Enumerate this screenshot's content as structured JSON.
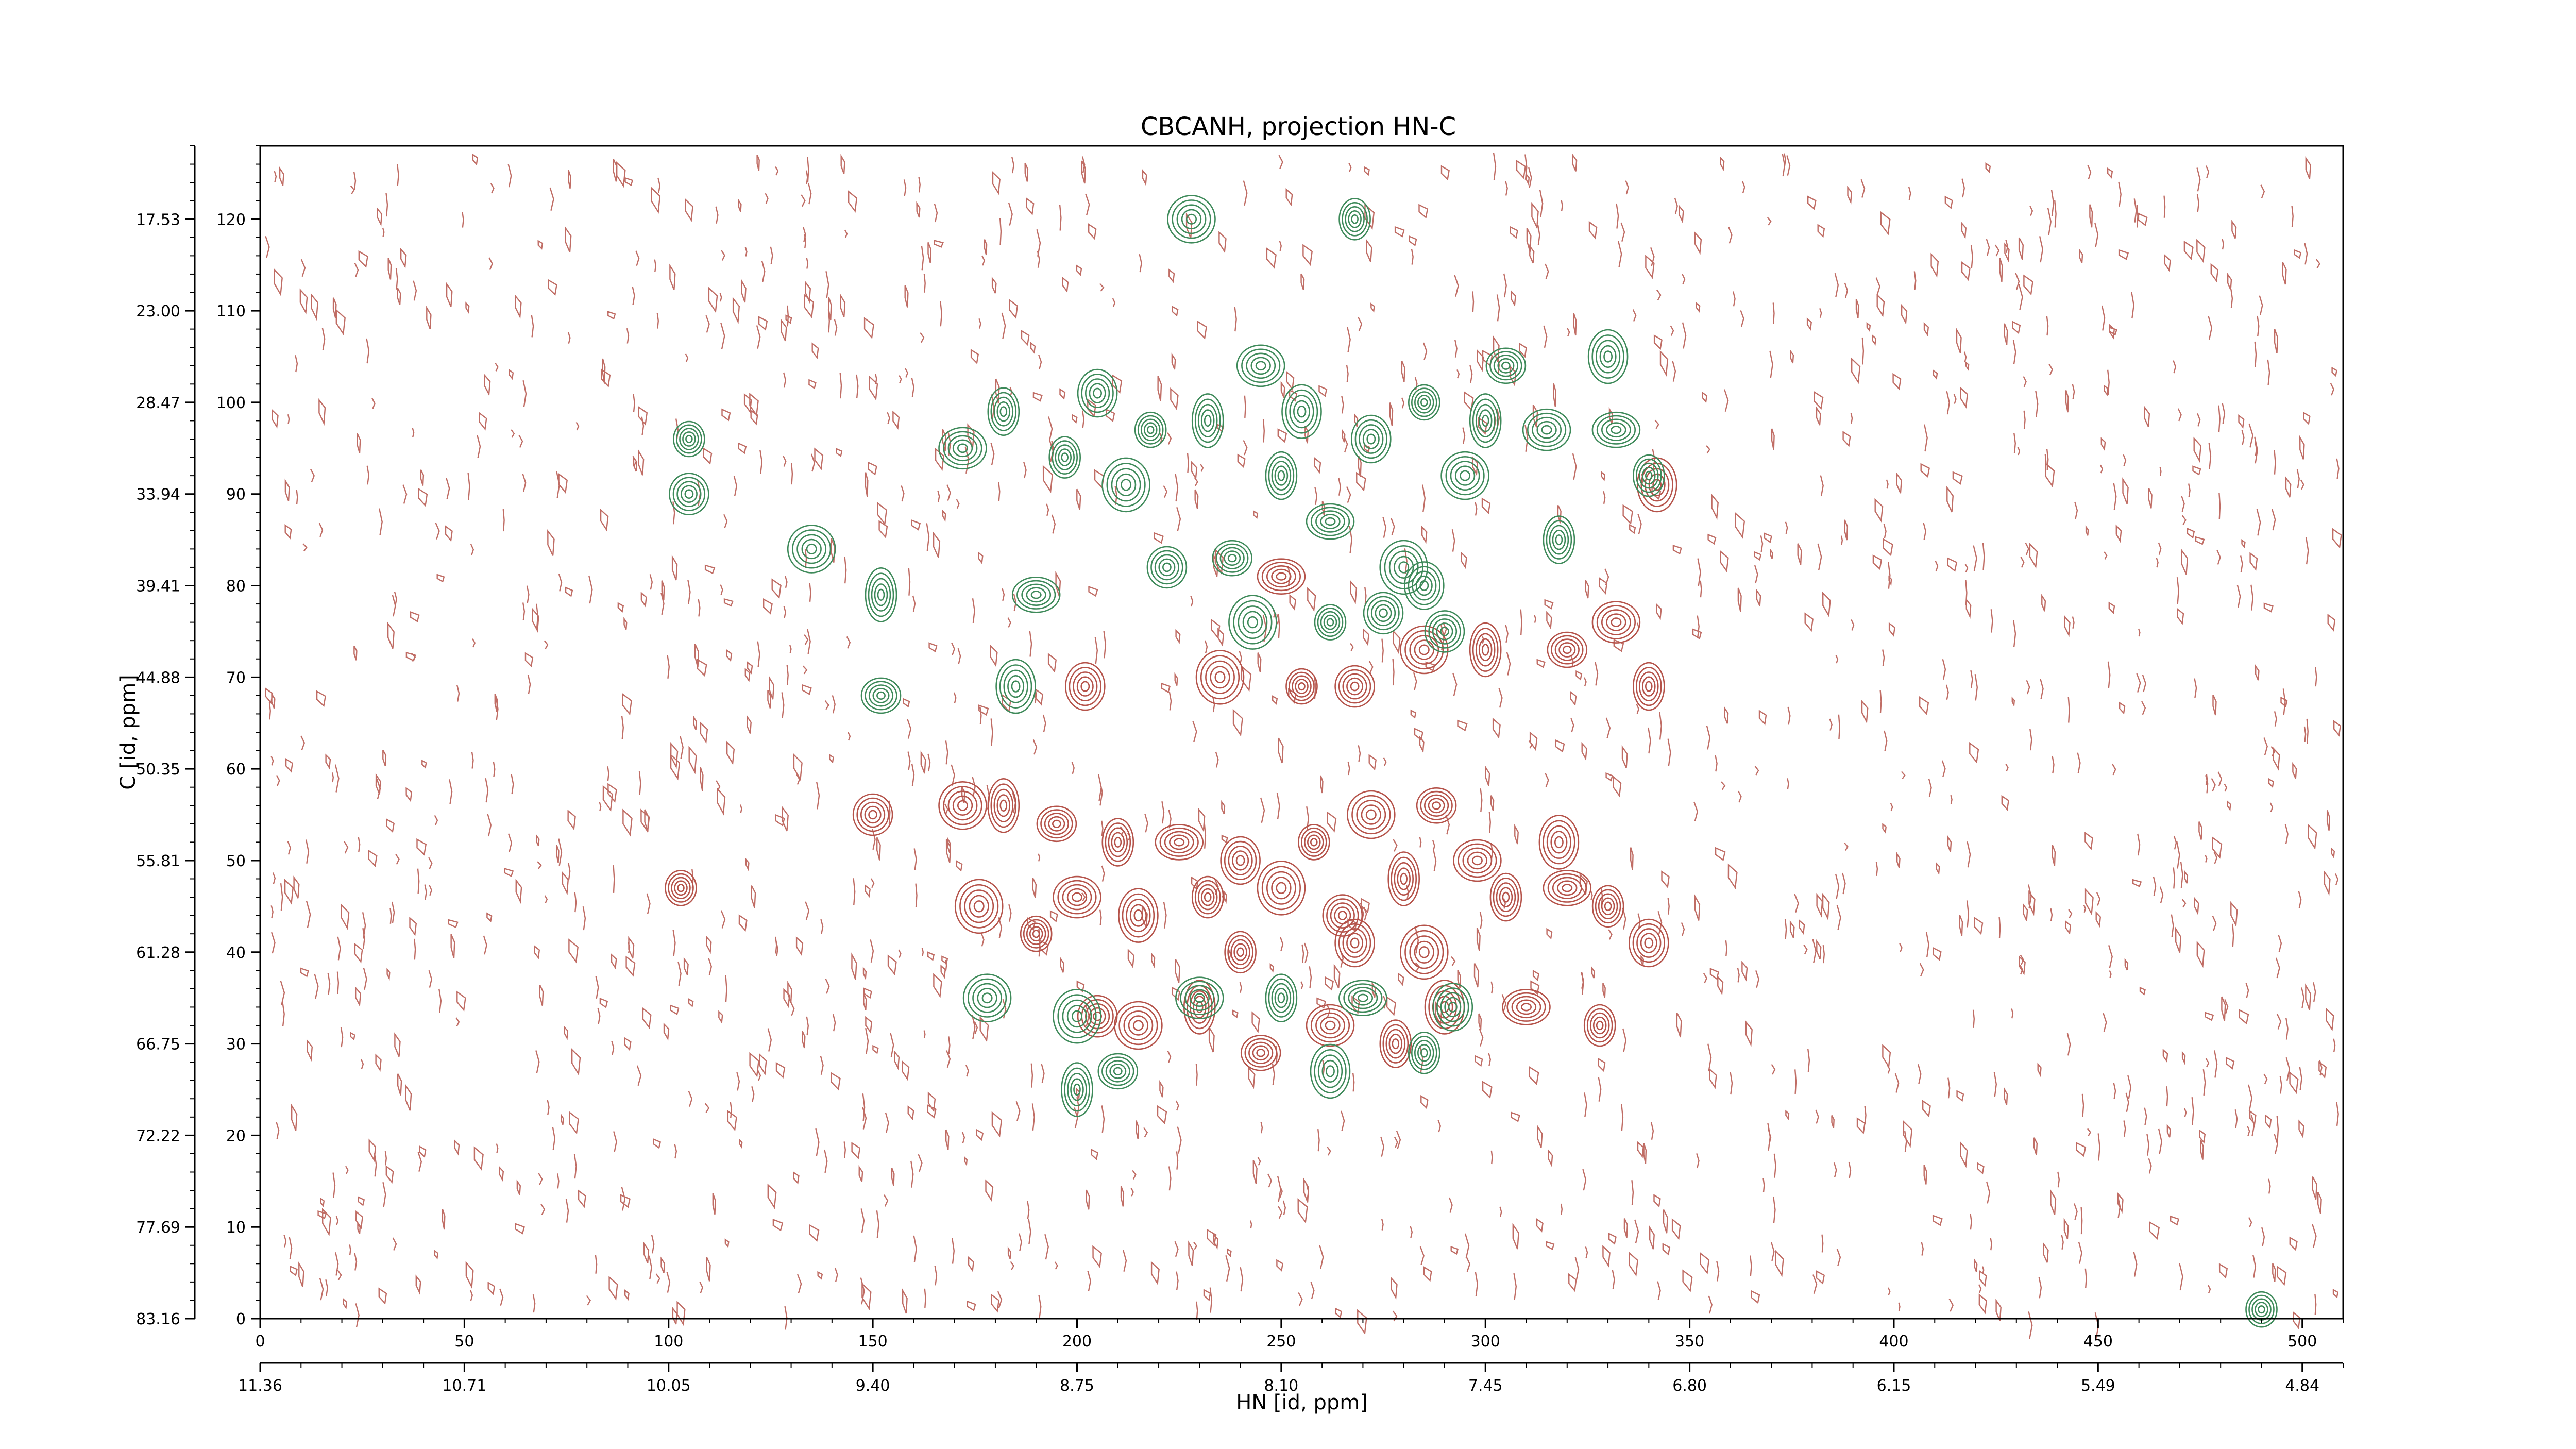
{
  "chart_data": {
    "type": "contour",
    "title": "CBCANH, projection HN-C",
    "xlabel": "HN [id, ppm]",
    "ylabel": "C [id, ppm]",
    "x_index_ticks": [
      "0",
      "50",
      "100",
      "150",
      "200",
      "250",
      "300",
      "350",
      "400",
      "450",
      "500"
    ],
    "x_ppm_ticks": [
      "11.36",
      "10.71",
      "10.05",
      "9.40",
      "8.75",
      "8.10",
      "7.45",
      "6.80",
      "6.15",
      "5.49",
      "4.84"
    ],
    "y_index_ticks": [
      "0",
      "10",
      "20",
      "30",
      "40",
      "50",
      "60",
      "70",
      "80",
      "90",
      "100",
      "110",
      "120"
    ],
    "y_ppm_ticks": [
      "83.16",
      "77.69",
      "72.22",
      "66.75",
      "61.28",
      "55.81",
      "50.35",
      "44.88",
      "39.41",
      "33.94",
      "28.47",
      "23.00",
      "17.53"
    ],
    "xlim": [
      0,
      510
    ],
    "ylim": [
      0,
      128
    ],
    "series": [
      {
        "sign": "negative",
        "color": "#b5534a",
        "peaks": [
          {
            "x": 103,
            "y": 47
          },
          {
            "x": 150,
            "y": 55
          },
          {
            "x": 172,
            "y": 56
          },
          {
            "x": 182,
            "y": 56
          },
          {
            "x": 195,
            "y": 54
          },
          {
            "x": 200,
            "y": 46
          },
          {
            "x": 210,
            "y": 52
          },
          {
            "x": 215,
            "y": 44
          },
          {
            "x": 225,
            "y": 52
          },
          {
            "x": 232,
            "y": 46
          },
          {
            "x": 240,
            "y": 50
          },
          {
            "x": 250,
            "y": 47
          },
          {
            "x": 258,
            "y": 52
          },
          {
            "x": 265,
            "y": 44
          },
          {
            "x": 272,
            "y": 55
          },
          {
            "x": 280,
            "y": 48
          },
          {
            "x": 288,
            "y": 56
          },
          {
            "x": 298,
            "y": 50
          },
          {
            "x": 305,
            "y": 46
          },
          {
            "x": 318,
            "y": 52
          },
          {
            "x": 320,
            "y": 47
          },
          {
            "x": 330,
            "y": 45
          },
          {
            "x": 340,
            "y": 41
          },
          {
            "x": 176,
            "y": 45
          },
          {
            "x": 190,
            "y": 42
          },
          {
            "x": 205,
            "y": 33
          },
          {
            "x": 215,
            "y": 32
          },
          {
            "x": 230,
            "y": 34
          },
          {
            "x": 245,
            "y": 29
          },
          {
            "x": 262,
            "y": 32
          },
          {
            "x": 278,
            "y": 30
          },
          {
            "x": 290,
            "y": 34
          },
          {
            "x": 310,
            "y": 34
          },
          {
            "x": 328,
            "y": 32
          },
          {
            "x": 202,
            "y": 69
          },
          {
            "x": 235,
            "y": 70
          },
          {
            "x": 255,
            "y": 69
          },
          {
            "x": 268,
            "y": 69
          },
          {
            "x": 285,
            "y": 73
          },
          {
            "x": 300,
            "y": 73
          },
          {
            "x": 320,
            "y": 73
          },
          {
            "x": 332,
            "y": 76
          },
          {
            "x": 340,
            "y": 69
          },
          {
            "x": 342,
            "y": 91
          },
          {
            "x": 250,
            "y": 81
          },
          {
            "x": 240,
            "y": 40
          },
          {
            "x": 268,
            "y": 41
          },
          {
            "x": 285,
            "y": 40
          }
        ]
      },
      {
        "sign": "positive",
        "color": "#3e8a5a",
        "peaks": [
          {
            "x": 105,
            "y": 96
          },
          {
            "x": 105,
            "y": 90
          },
          {
            "x": 135,
            "y": 84
          },
          {
            "x": 152,
            "y": 79
          },
          {
            "x": 152,
            "y": 68
          },
          {
            "x": 172,
            "y": 95
          },
          {
            "x": 182,
            "y": 99
          },
          {
            "x": 185,
            "y": 69
          },
          {
            "x": 190,
            "y": 79
          },
          {
            "x": 197,
            "y": 94
          },
          {
            "x": 205,
            "y": 101
          },
          {
            "x": 212,
            "y": 91
          },
          {
            "x": 218,
            "y": 97
          },
          {
            "x": 222,
            "y": 82
          },
          {
            "x": 228,
            "y": 120
          },
          {
            "x": 232,
            "y": 98
          },
          {
            "x": 238,
            "y": 83
          },
          {
            "x": 245,
            "y": 104
          },
          {
            "x": 250,
            "y": 92
          },
          {
            "x": 255,
            "y": 99
          },
          {
            "x": 262,
            "y": 87
          },
          {
            "x": 268,
            "y": 120
          },
          {
            "x": 272,
            "y": 96
          },
          {
            "x": 280,
            "y": 82
          },
          {
            "x": 285,
            "y": 100
          },
          {
            "x": 290,
            "y": 75
          },
          {
            "x": 295,
            "y": 92
          },
          {
            "x": 300,
            "y": 98
          },
          {
            "x": 305,
            "y": 104
          },
          {
            "x": 315,
            "y": 97
          },
          {
            "x": 318,
            "y": 85
          },
          {
            "x": 330,
            "y": 105
          },
          {
            "x": 332,
            "y": 97
          },
          {
            "x": 340,
            "y": 92
          },
          {
            "x": 285,
            "y": 80
          },
          {
            "x": 243,
            "y": 76
          },
          {
            "x": 262,
            "y": 76
          },
          {
            "x": 275,
            "y": 77
          },
          {
            "x": 178,
            "y": 35
          },
          {
            "x": 200,
            "y": 25
          },
          {
            "x": 210,
            "y": 27
          },
          {
            "x": 230,
            "y": 35
          },
          {
            "x": 250,
            "y": 35
          },
          {
            "x": 262,
            "y": 27
          },
          {
            "x": 270,
            "y": 35
          },
          {
            "x": 285,
            "y": 29
          },
          {
            "x": 292,
            "y": 34
          },
          {
            "x": 200,
            "y": 33
          },
          {
            "x": 490,
            "y": 1
          }
        ]
      }
    ]
  }
}
